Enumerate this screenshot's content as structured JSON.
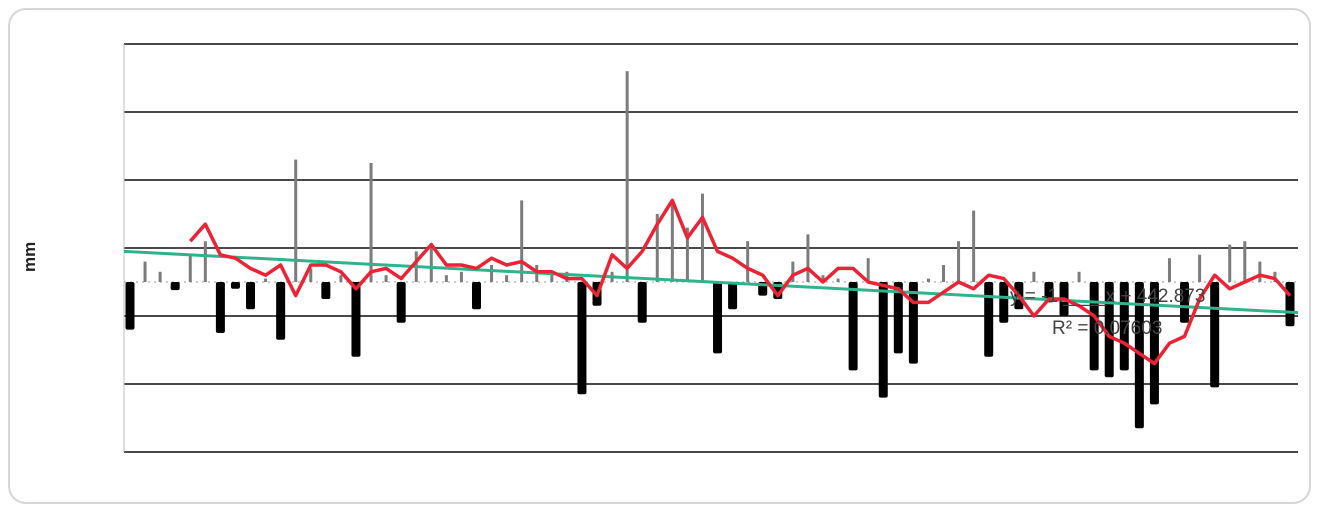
{
  "chart_data": {
    "type": "bar",
    "ylabel": "mm",
    "xlabel": "",
    "title": "",
    "ylim": [
      -250,
      350
    ],
    "grid": true,
    "gridlines": [
      -250,
      -150,
      -50,
      50,
      150,
      250,
      350
    ],
    "colors": {
      "positive": "#7c7c7c",
      "negative": "#000000",
      "moving_avg": "#ee2235",
      "trend": "#2fb38c",
      "grid": "#4a4a4a"
    },
    "values": [
      -70,
      30,
      15,
      -12,
      40,
      60,
      -75,
      -10,
      -40,
      5,
      -85,
      180,
      20,
      -25,
      10,
      -110,
      175,
      10,
      -60,
      45,
      50,
      10,
      15,
      -40,
      25,
      10,
      120,
      25,
      15,
      15,
      -165,
      -35,
      15,
      310,
      -60,
      100,
      120,
      80,
      130,
      -105,
      -40,
      60,
      -20,
      -25,
      30,
      70,
      10,
      5,
      -130,
      35,
      -170,
      -105,
      -120,
      5,
      25,
      60,
      105,
      -110,
      -60,
      -40,
      15,
      -30,
      -50,
      15,
      -130,
      -140,
      -130,
      -215,
      -180,
      35,
      -60,
      40,
      -155,
      55,
      60,
      30,
      15,
      -65
    ],
    "series": [
      {
        "name": "",
        "type": "line",
        "values": [
          null,
          null,
          null,
          null,
          60,
          85,
          40,
          35,
          20,
          10,
          25,
          -20,
          25,
          25,
          15,
          -10,
          15,
          20,
          5,
          30,
          55,
          25,
          25,
          20,
          35,
          25,
          30,
          15,
          15,
          5,
          5,
          -20,
          40,
          20,
          45,
          85,
          120,
          65,
          95,
          45,
          35,
          20,
          10,
          -20,
          10,
          20,
          0,
          20,
          20,
          0,
          -5,
          -10,
          -30,
          -30,
          -15,
          0,
          -10,
          10,
          5,
          -20,
          -50,
          -25,
          -25,
          -35,
          -50,
          -80,
          -90,
          -105,
          -120,
          -90,
          -80,
          -25,
          10,
          -10,
          0,
          10,
          5,
          -20
        ]
      },
      {
        "name": "",
        "type": "trendline",
        "start": 45,
        "end": -45
      }
    ],
    "annotations": {
      "equation": "y = -1.____x + 442.873",
      "r_squared": "R² = 0.07603"
    }
  }
}
